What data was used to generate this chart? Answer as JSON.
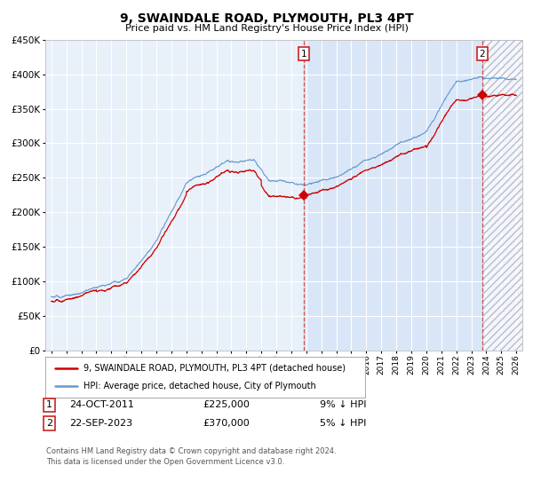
{
  "title": "9, SWAINDALE ROAD, PLYMOUTH, PL3 4PT",
  "subtitle": "Price paid vs. HM Land Registry's House Price Index (HPI)",
  "legend_line1": "9, SWAINDALE ROAD, PLYMOUTH, PL3 4PT (detached house)",
  "legend_line2": "HPI: Average price, detached house, City of Plymouth",
  "annotation1_date": "24-OCT-2011",
  "annotation1_price": "£225,000",
  "annotation1_hpi": "9% ↓ HPI",
  "annotation2_date": "22-SEP-2023",
  "annotation2_price": "£370,000",
  "annotation2_hpi": "5% ↓ HPI",
  "footer": "Contains HM Land Registry data © Crown copyright and database right 2024.\nThis data is licensed under the Open Government Licence v3.0.",
  "hpi_color": "#6699cc",
  "price_color": "#cc0000",
  "bg_color": "#ddeeff",
  "plot_bg": "#e8f0fa",
  "sale1_year": 2011.82,
  "sale1_price": 225000,
  "sale2_year": 2023.73,
  "sale2_price": 370000,
  "ylim": [
    0,
    450000
  ],
  "xlim_start": 1994.6,
  "xlim_end": 2026.4,
  "yticks": [
    0,
    50000,
    100000,
    150000,
    200000,
    250000,
    300000,
    350000,
    400000,
    450000
  ],
  "xticks": [
    1995,
    1996,
    1997,
    1998,
    1999,
    2000,
    2001,
    2002,
    2003,
    2004,
    2005,
    2006,
    2007,
    2008,
    2009,
    2010,
    2011,
    2012,
    2013,
    2014,
    2015,
    2016,
    2017,
    2018,
    2019,
    2020,
    2021,
    2022,
    2023,
    2024,
    2025,
    2026
  ]
}
